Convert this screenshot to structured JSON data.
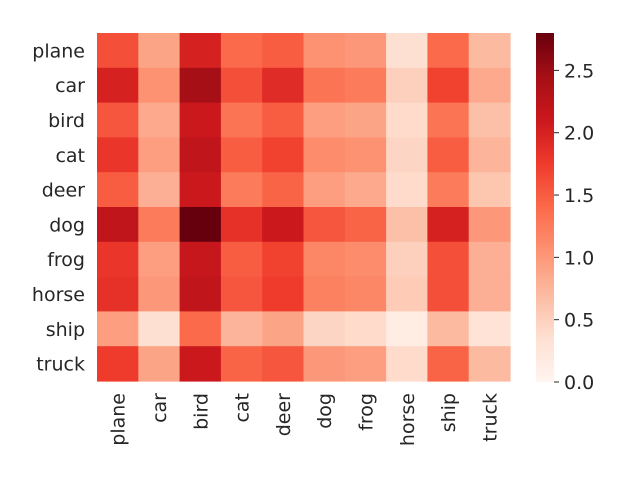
{
  "chart_data": {
    "type": "heatmap",
    "title": "",
    "xlabel": "",
    "ylabel": "",
    "rows": [
      "plane",
      "car",
      "bird",
      "cat",
      "deer",
      "dog",
      "frog",
      "horse",
      "ship",
      "truck"
    ],
    "columns": [
      "plane",
      "car",
      "bird",
      "cat",
      "deer",
      "dog",
      "frog",
      "horse",
      "ship",
      "truck"
    ],
    "values": [
      [
        1.6,
        0.9,
        2.0,
        1.4,
        1.5,
        1.05,
        1.0,
        0.35,
        1.4,
        0.7
      ],
      [
        2.0,
        1.05,
        2.45,
        1.6,
        1.9,
        1.3,
        1.25,
        0.5,
        1.7,
        0.85
      ],
      [
        1.55,
        0.85,
        2.1,
        1.3,
        1.5,
        0.95,
        0.9,
        0.4,
        1.3,
        0.65
      ],
      [
        1.8,
        0.95,
        2.2,
        1.5,
        1.7,
        1.1,
        1.05,
        0.45,
        1.5,
        0.75
      ],
      [
        1.5,
        0.8,
        2.1,
        1.25,
        1.45,
        0.95,
        0.85,
        0.4,
        1.25,
        0.6
      ],
      [
        2.2,
        1.25,
        2.8,
        1.85,
        2.1,
        1.55,
        1.45,
        0.65,
        2.0,
        1.0
      ],
      [
        1.8,
        0.95,
        2.15,
        1.5,
        1.7,
        1.15,
        1.1,
        0.5,
        1.6,
        0.8
      ],
      [
        1.85,
        1.0,
        2.2,
        1.55,
        1.75,
        1.2,
        1.15,
        0.55,
        1.6,
        0.8
      ],
      [
        0.95,
        0.35,
        1.4,
        0.75,
        0.9,
        0.45,
        0.4,
        0.15,
        0.7,
        0.3
      ],
      [
        1.75,
        0.9,
        2.1,
        1.45,
        1.55,
        1.0,
        0.95,
        0.4,
        1.45,
        0.7
      ]
    ],
    "colorbar": {
      "min": 0.0,
      "max": 2.8,
      "ticks": [
        "0.0",
        "0.5",
        "1.0",
        "1.5",
        "2.0",
        "2.5"
      ],
      "colormap": "Reds"
    },
    "grid": false,
    "colormap_stops": [
      "#fff5f0",
      "#fee0d2",
      "#fcbba1",
      "#fc9272",
      "#fb6a4a",
      "#ef3b2c",
      "#cb181d",
      "#a50f15",
      "#67000d"
    ]
  }
}
